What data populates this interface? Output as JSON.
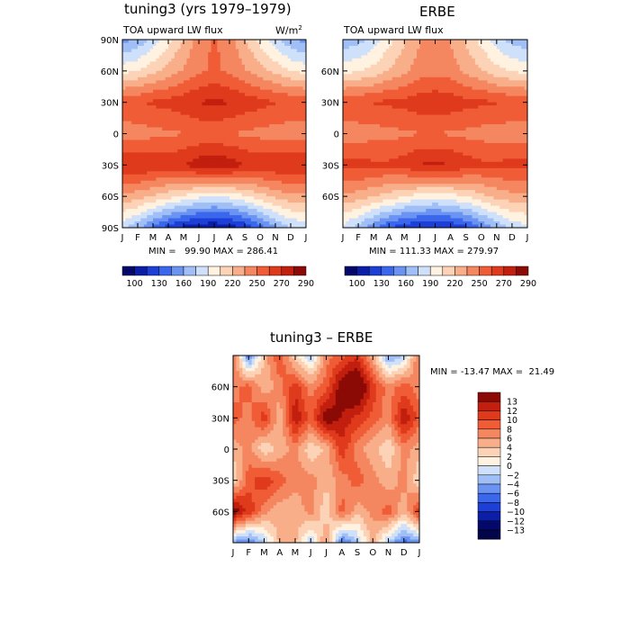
{
  "panels": [
    {
      "title": "tuning3 (yrs 1979–1979)",
      "left_label": "TOA upward LW flux",
      "right_label": "W/m",
      "right_label_sup": "2",
      "min_label": "MIN =",
      "min_value": "99.90",
      "max_label": "MAX =",
      "max_value": "286.41",
      "ylabels": [
        "90N",
        "60N",
        "30N",
        "0",
        "30S",
        "60S",
        "90S"
      ]
    },
    {
      "title": "ERBE",
      "left_label": "TOA upward LW flux",
      "min_label": "MIN =",
      "min_value": "111.33",
      "max_label": "MAX =",
      "max_value": "279.97",
      "ylabels": [
        "",
        "60N",
        "30N",
        "0",
        "30S",
        "60S",
        ""
      ]
    },
    {
      "title": "tuning3 – ERBE",
      "min_label": "MIN =",
      "min_value": "-13.47",
      "max_label": "MAX =",
      "max_value": "21.49",
      "ylabels": [
        "",
        "60N",
        "30N",
        "0",
        "30S",
        "60S",
        ""
      ]
    }
  ],
  "months": [
    "J",
    "F",
    "M",
    "A",
    "M",
    "J",
    "J",
    "A",
    "S",
    "O",
    "N",
    "D",
    "J"
  ],
  "colorbar_top": {
    "labels": [
      "100",
      "130",
      "160",
      "190",
      "220",
      "250",
      "270",
      "290"
    ],
    "colors": [
      "#05086b",
      "#0a1ea8",
      "#1e3fd6",
      "#3a67ec",
      "#6b93f2",
      "#a0bff7",
      "#cfe0fa",
      "#fff2e0",
      "#fcd3b7",
      "#f9ae8a",
      "#f58760",
      "#ef5c36",
      "#df3a1c",
      "#c21f0e",
      "#8c0a05"
    ]
  },
  "colorbar_diff": {
    "labels": [
      "13",
      "12",
      "10",
      "8",
      "6",
      "4",
      "2",
      "0",
      "−2",
      "−4",
      "−6",
      "−8",
      "−10",
      "−12",
      "−13"
    ],
    "colors": [
      "#8c0a05",
      "#c21f0e",
      "#df3a1c",
      "#ef5c36",
      "#f58760",
      "#f9ae8a",
      "#fcd3b7",
      "#fff2e0",
      "#cfe0fa",
      "#a0bff7",
      "#6b93f2",
      "#3a67ec",
      "#1e3fd6",
      "#0a1ea8",
      "#05086b",
      "#02054a"
    ]
  },
  "chart_data": [
    {
      "type": "heatmap",
      "title": "tuning3 (yrs 1979–1979)",
      "subtitle": "TOA upward LW flux",
      "units": "W/m2",
      "xlabel": "",
      "ylabel": "",
      "x": [
        "J",
        "F",
        "M",
        "A",
        "M",
        "J",
        "J",
        "A",
        "S",
        "O",
        "N",
        "D",
        "J"
      ],
      "y": [
        "90N",
        "60N",
        "30N",
        "0",
        "30S",
        "60S",
        "90S"
      ],
      "colorbar_ticks": [
        100,
        130,
        160,
        190,
        220,
        250,
        270,
        290
      ],
      "min": 99.9,
      "max": 286.41,
      "values": [
        [
          150,
          160,
          175,
          195,
          215,
          235,
          245,
          235,
          215,
          195,
          175,
          160,
          150
        ],
        [
          195,
          200,
          210,
          220,
          230,
          240,
          245,
          240,
          230,
          220,
          210,
          200,
          195
        ],
        [
          255,
          255,
          260,
          262,
          266,
          272,
          275,
          272,
          266,
          262,
          258,
          255,
          255
        ],
        [
          235,
          237,
          238,
          240,
          242,
          245,
          245,
          243,
          240,
          238,
          236,
          235,
          235
        ],
        [
          270,
          272,
          270,
          268,
          272,
          280,
          283,
          280,
          272,
          268,
          270,
          272,
          270
        ],
        [
          225,
          220,
          212,
          205,
          198,
          190,
          186,
          190,
          198,
          208,
          218,
          224,
          225
        ],
        [
          175,
          160,
          140,
          120,
          108,
          102,
          100,
          104,
          115,
          135,
          155,
          170,
          175
        ]
      ]
    },
    {
      "type": "heatmap",
      "title": "ERBE",
      "subtitle": "TOA upward LW flux",
      "units": "W/m2",
      "xlabel": "",
      "ylabel": "",
      "x": [
        "J",
        "F",
        "M",
        "A",
        "M",
        "J",
        "J",
        "A",
        "S",
        "O",
        "N",
        "D",
        "J"
      ],
      "y": [
        "90N",
        "60N",
        "30N",
        "0",
        "30S",
        "60S",
        "90S"
      ],
      "colorbar_ticks": [
        100,
        130,
        160,
        190,
        220,
        250,
        270,
        290
      ],
      "min": 111.33,
      "max": 279.97,
      "values": [
        [
          160,
          165,
          178,
          195,
          212,
          228,
          235,
          228,
          212,
          195,
          178,
          165,
          160
        ],
        [
          195,
          198,
          205,
          215,
          225,
          235,
          238,
          235,
          225,
          215,
          205,
          198,
          195
        ],
        [
          255,
          255,
          258,
          260,
          262,
          266,
          268,
          266,
          262,
          260,
          258,
          255,
          255
        ],
        [
          235,
          236,
          237,
          238,
          240,
          242,
          242,
          241,
          239,
          237,
          236,
          235,
          235
        ],
        [
          262,
          262,
          260,
          260,
          265,
          272,
          275,
          272,
          265,
          260,
          260,
          262,
          262
        ],
        [
          225,
          222,
          215,
          208,
          200,
          194,
          190,
          194,
          200,
          210,
          218,
          223,
          225
        ],
        [
          180,
          165,
          145,
          128,
          118,
          113,
          112,
          115,
          125,
          142,
          160,
          175,
          180
        ]
      ]
    },
    {
      "type": "heatmap",
      "title": "tuning3 – ERBE",
      "xlabel": "",
      "ylabel": "",
      "x": [
        "J",
        "F",
        "M",
        "A",
        "M",
        "J",
        "J",
        "A",
        "S",
        "O",
        "N",
        "D",
        "J"
      ],
      "y": [
        "90N",
        "60N",
        "30N",
        "0",
        "30S",
        "60S",
        "90S"
      ],
      "colorbar_ticks": [
        13,
        12,
        10,
        8,
        6,
        4,
        2,
        0,
        -2,
        -4,
        -6,
        -8,
        -10,
        -12,
        -13
      ],
      "min": -13.47,
      "max": 21.49,
      "values": [
        [
          8,
          -6,
          4,
          9,
          2,
          -2,
          6,
          8,
          10,
          4,
          -4,
          -2,
          8
        ],
        [
          6,
          8,
          4,
          6,
          10,
          6,
          8,
          14,
          16,
          10,
          6,
          8,
          6
        ],
        [
          8,
          6,
          10,
          4,
          12,
          8,
          14,
          12,
          10,
          8,
          6,
          12,
          8
        ],
        [
          4,
          6,
          2,
          4,
          6,
          2,
          4,
          10,
          6,
          4,
          2,
          6,
          4
        ],
        [
          2,
          8,
          10,
          8,
          6,
          6,
          4,
          6,
          8,
          6,
          4,
          6,
          2
        ],
        [
          14,
          10,
          6,
          4,
          4,
          6,
          2,
          8,
          4,
          6,
          8,
          4,
          10
        ],
        [
          -4,
          -6,
          -2,
          4,
          4,
          -2,
          6,
          -6,
          -2,
          4,
          -2,
          -6,
          -4
        ]
      ]
    }
  ]
}
